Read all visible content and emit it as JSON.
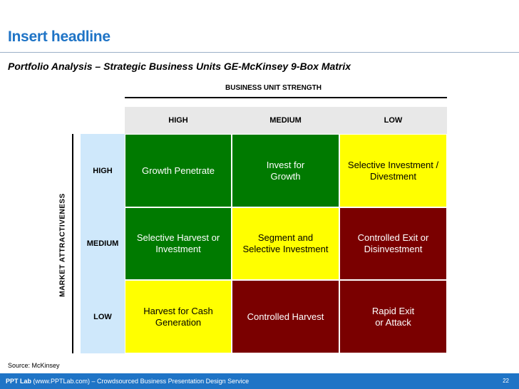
{
  "slide": {
    "headline": "Insert headline",
    "subtitle": "Portfolio Analysis – Strategic Business Units GE-McKinsey 9-Box Matrix",
    "source": "Source: McKinsey"
  },
  "matrix": {
    "x_axis_label": "BUSINESS UNIT STRENGTH",
    "y_axis_label": "MARKET ATTRACTIVENESS",
    "columns": [
      "HIGH",
      "MEDIUM",
      "LOW"
    ],
    "rows": [
      "HIGH",
      "MEDIUM",
      "LOW"
    ],
    "cells": [
      [
        "Growth Penetrate",
        "Invest for\nGrowth",
        "Selective Investment /\nDivestment"
      ],
      [
        "Selective Harvest or\nInvestment",
        "Segment and\nSelective Investment",
        "Controlled Exit or\nDisinvestment"
      ],
      [
        "Harvest for Cash\nGeneration",
        "Controlled Harvest",
        "Rapid Exit\nor Attack"
      ]
    ],
    "cell_colors": [
      [
        "#007a00",
        "#007a00",
        "#ffff00"
      ],
      [
        "#007a00",
        "#ffff00",
        "#7a0000"
      ],
      [
        "#ffff00",
        "#7a0000",
        "#7a0000"
      ]
    ]
  },
  "footer": {
    "brand": "PPT Lab",
    "text": " (www.PPTLab.com) – Crowdsourced Business Presentation Design Service",
    "page_number": "22"
  }
}
